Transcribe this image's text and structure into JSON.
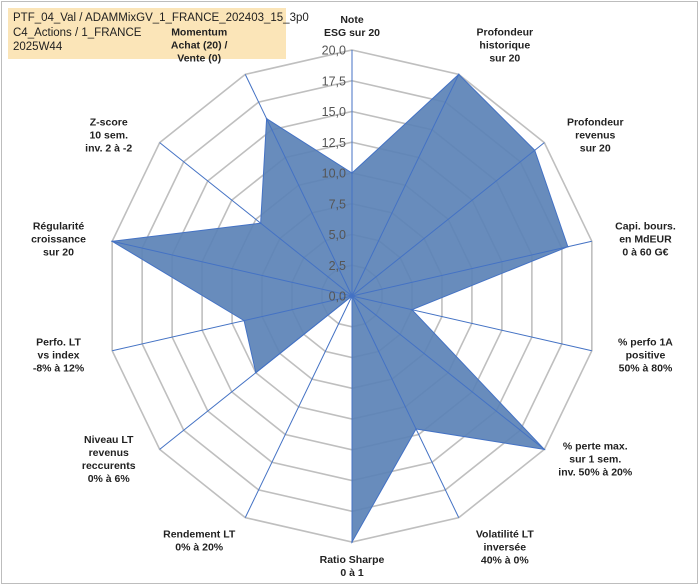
{
  "header": {
    "line1": "PTF_04_Val / ADAMMixGV_1_FRANCE_202403_15_3p0",
    "line2": "C4_Actions / 1_FRANCE",
    "line3": "2025W44"
  },
  "colors": {
    "fill": "#5b82b6",
    "stroke": "#4472c4",
    "grid": "#bfbfbf",
    "spoke": "#4472c4",
    "header_bg": "#fbe5b8"
  },
  "chart_data": {
    "type": "radar",
    "title": "",
    "rmin": 0,
    "rmax": 20,
    "ticks": [
      "0,0",
      "2,5",
      "5,0",
      "7,5",
      "10,0",
      "12,5",
      "15,0",
      "17,5",
      "20,0"
    ],
    "axes": [
      {
        "lines": [
          "Note",
          "ESG sur 20"
        ],
        "value": 10
      },
      {
        "lines": [
          "Profondeur",
          "historique",
          "sur 20"
        ],
        "value": 20
      },
      {
        "lines": [
          "Profondeur",
          "revenus",
          "sur 20"
        ],
        "value": 19
      },
      {
        "lines": [
          "Capi. bours.",
          "en MdEUR",
          "0 à 60 G€"
        ],
        "value": 18
      },
      {
        "lines": [
          "% perfo 1A",
          "positive",
          "50% à 80%"
        ],
        "value": 5
      },
      {
        "lines": [
          "% perte max.",
          "sur 1 sem.",
          "inv. 50% à 20%"
        ],
        "value": 20
      },
      {
        "lines": [
          "Volatilité LT",
          "inversée",
          "40% à 0%"
        ],
        "value": 12
      },
      {
        "lines": [
          "Ratio Sharpe",
          "0 à 1"
        ],
        "value": 20
      },
      {
        "lines": [
          "Rendement LT",
          "0% à 20%"
        ],
        "value": 0
      },
      {
        "lines": [
          "Niveau LT",
          "revenus",
          "reccurents",
          "0% à 6%"
        ],
        "value": 10
      },
      {
        "lines": [
          "Perfo. LT",
          "vs index",
          "-8% à 12%"
        ],
        "value": 9
      },
      {
        "lines": [
          "Régularité",
          "croissance",
          "sur 20"
        ],
        "value": 20
      },
      {
        "lines": [
          "Z-score",
          "10 sem.",
          "inv. 2 à -2"
        ],
        "value": 9.5
      },
      {
        "lines": [
          "Momentum",
          "Achat (20) /",
          "Vente (0)"
        ],
        "value": 16
      }
    ]
  }
}
